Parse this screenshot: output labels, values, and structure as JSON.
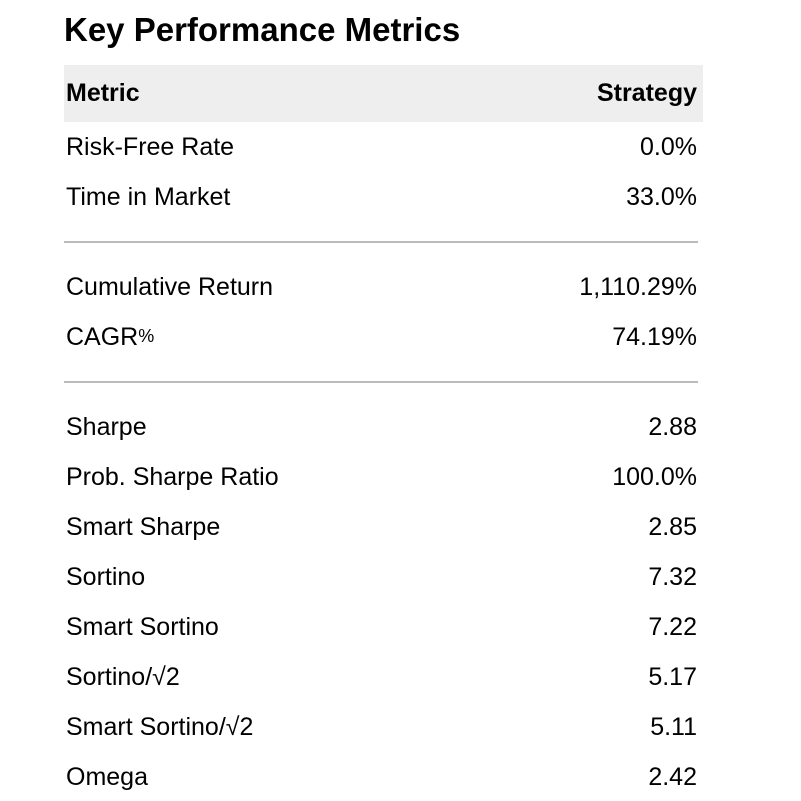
{
  "colors": {
    "background": "#ffffff",
    "header_bg": "#eeeeee",
    "divider": "#bbbbbb",
    "text": "#000000"
  },
  "chart_data": {
    "type": "table",
    "title": "Key Performance Metrics",
    "columns": [
      "Metric",
      "Strategy"
    ],
    "sections": [
      {
        "rows": [
          {
            "metric": "Risk-Free Rate",
            "value": "0.0%"
          },
          {
            "metric": "Time in Market",
            "value": "33.0%"
          }
        ]
      },
      {
        "rows": [
          {
            "metric": "Cumulative Return",
            "value": "1,110.29%"
          },
          {
            "metric": "CAGR",
            "metric_suffix": "%",
            "value": "74.19%"
          }
        ]
      },
      {
        "rows": [
          {
            "metric": "Sharpe",
            "value": "2.88"
          },
          {
            "metric": "Prob. Sharpe Ratio",
            "value": "100.0%"
          },
          {
            "metric": "Smart Sharpe",
            "value": "2.85"
          },
          {
            "metric": "Sortino",
            "value": "7.32"
          },
          {
            "metric": "Smart Sortino",
            "value": "7.22"
          },
          {
            "metric": "Sortino/√2",
            "value": "5.17"
          },
          {
            "metric": "Smart Sortino/√2",
            "value": "5.11"
          },
          {
            "metric": "Omega",
            "value": "2.42"
          }
        ]
      }
    ]
  }
}
